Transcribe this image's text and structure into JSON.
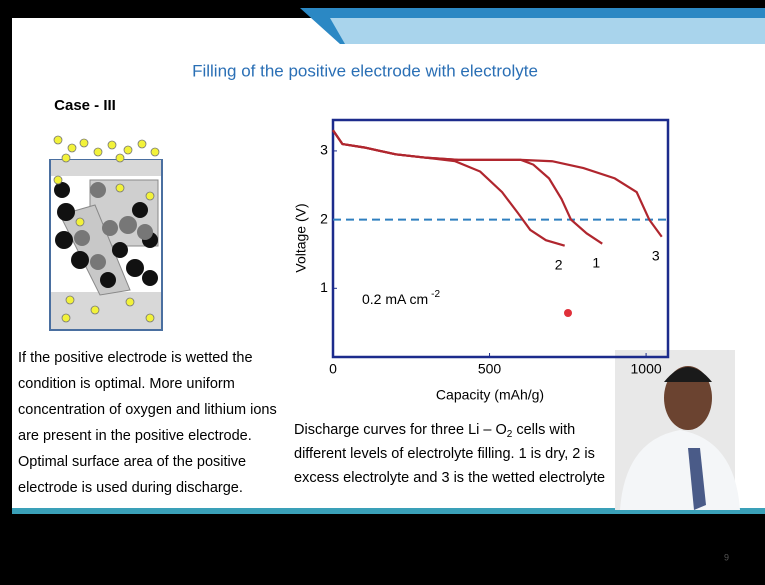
{
  "slide": {
    "title": "Filling of the positive electrode with electrolyte",
    "case_label": "Case - III",
    "paragraph": [
      "If the positive electrode is wetted the",
      "condition is optimal. More uniform",
      "concentration of oxygen and lithium ions",
      "are present in the positive electrode.",
      "Optimal surface area of the positive",
      "electrode is used during discharge."
    ],
    "caption": [
      [
        "Discharge curves for three Li – O",
        "2",
        " cells with"
      ],
      [
        "different levels of electrolyte filling. 1 is dry, 2 is"
      ],
      [
        "excess electrolyte and 3 is the wetted electrolyte"
      ]
    ],
    "page_number": "9"
  },
  "chart_data": {
    "type": "line",
    "xlabel": "Capacity (mAh/g)",
    "ylabel": "Voltage (V)",
    "xlim": [
      0,
      1070
    ],
    "ylim": [
      0,
      3.45
    ],
    "xticks": [
      0,
      500,
      1000
    ],
    "yticks": [
      1,
      2,
      3
    ],
    "reference_line": 2,
    "reference_color": "#2f7fbf",
    "annotation": {
      "text": "0.2 mA cm",
      "sup": "-2"
    },
    "series": [
      {
        "name": "1",
        "color": "#b0262e",
        "x": [
          0,
          30,
          100,
          200,
          300,
          400,
          600,
          640,
          690,
          730,
          760,
          810,
          860
        ],
        "values": [
          3.3,
          3.1,
          3.05,
          2.95,
          2.9,
          2.87,
          2.87,
          2.8,
          2.6,
          2.3,
          2.0,
          1.8,
          1.65
        ]
      },
      {
        "name": "2",
        "color": "#b0262e",
        "x": [
          0,
          30,
          100,
          200,
          300,
          390,
          470,
          540,
          590,
          630,
          680,
          740
        ],
        "values": [
          3.3,
          3.1,
          3.05,
          2.95,
          2.9,
          2.85,
          2.7,
          2.4,
          2.1,
          1.85,
          1.7,
          1.62
        ]
      },
      {
        "name": "3",
        "color": "#b0262e",
        "x": [
          0,
          30,
          100,
          200,
          300,
          400,
          600,
          700,
          800,
          900,
          970,
          1010,
          1050
        ],
        "values": [
          3.3,
          3.1,
          3.05,
          2.95,
          2.9,
          2.87,
          2.87,
          2.85,
          2.75,
          2.6,
          2.4,
          2.0,
          1.75
        ]
      }
    ]
  }
}
